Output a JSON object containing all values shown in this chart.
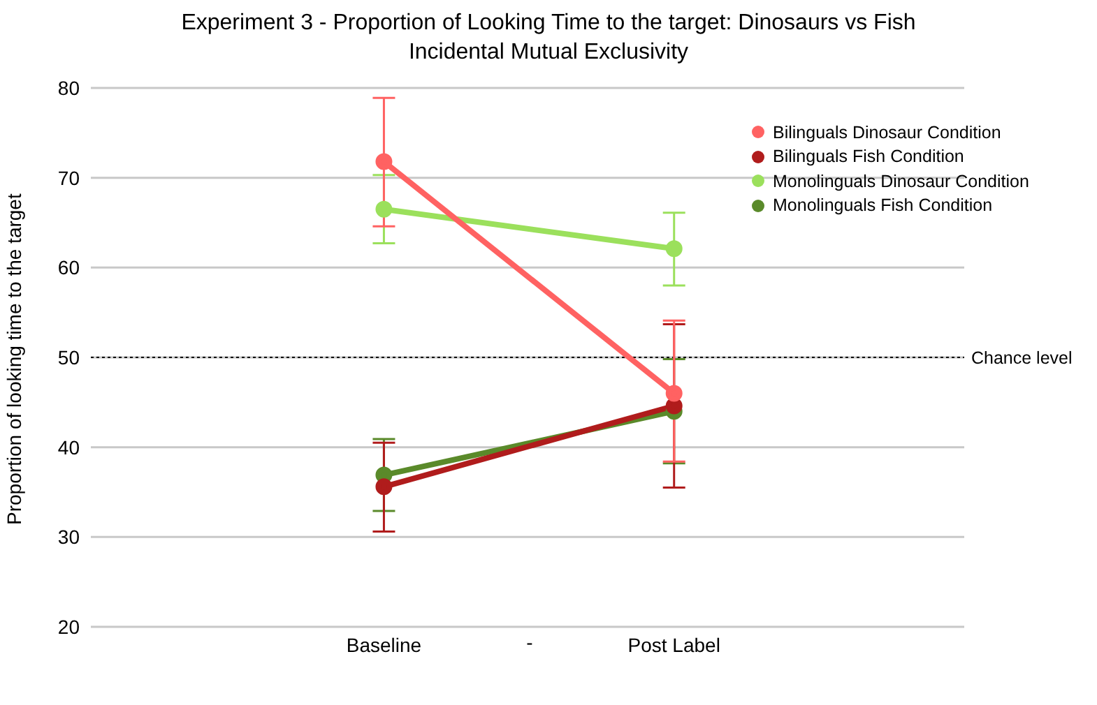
{
  "chart_data": {
    "type": "line",
    "title": "Experiment 3 -  Proportion of Looking Time to the target: Dinosaurs vs Fish",
    "subtitle": "Incidental Mutual Exclusivity",
    "ylabel": "Proportion of looking time to the target",
    "categories": [
      "Baseline",
      "Post Label"
    ],
    "annotations": [
      "-"
    ],
    "series": [
      {
        "name": "Bilinguals Dinosaur Condition",
        "color": "#ff6262",
        "values": [
          71.8,
          46.0
        ],
        "errors": [
          [
            64.6,
            78.9
          ],
          [
            38.4,
            54.1
          ]
        ]
      },
      {
        "name": "Bilinguals Fish Condition",
        "color": "#b01c1c",
        "values": [
          35.6,
          44.6
        ],
        "errors": [
          [
            30.6,
            40.5
          ],
          [
            35.5,
            53.7
          ]
        ]
      },
      {
        "name": "Monolinguals Dinosaur Condition",
        "color": "#9be05c",
        "values": [
          66.5,
          62.1
        ],
        "errors": [
          [
            62.7,
            70.3
          ],
          [
            58.0,
            66.1
          ]
        ]
      },
      {
        "name": "Monolinguals Fish Condition",
        "color": "#5a8a2a",
        "values": [
          36.9,
          44.0
        ],
        "errors": [
          [
            32.9,
            40.9
          ],
          [
            38.2,
            49.8
          ]
        ]
      }
    ],
    "ylim": [
      20,
      80
    ],
    "yticks": [
      20,
      30,
      40,
      50,
      60,
      70,
      80
    ],
    "grid": "y",
    "legend": "top right",
    "marker": "circle",
    "ref_lines": [
      {
        "axis": "y",
        "value": 50,
        "label": "Chance level",
        "line_style": "dotted",
        "color": "#000000"
      }
    ]
  }
}
